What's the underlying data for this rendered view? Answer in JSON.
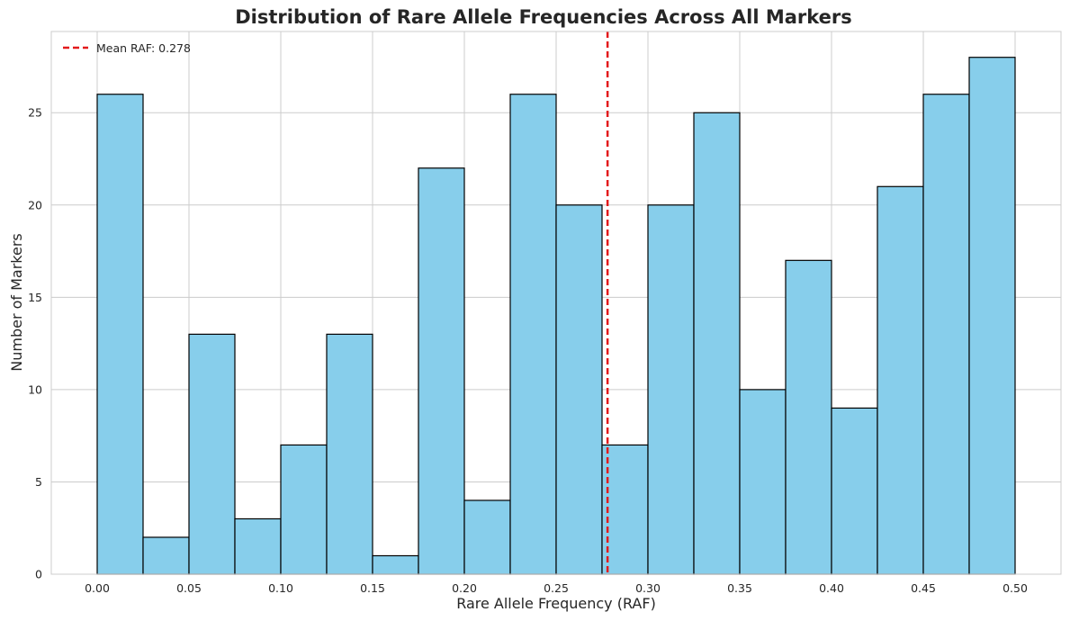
{
  "chart_data": {
    "type": "bar",
    "title": "Distribution of Rare Allele Frequencies Across All Markers",
    "xlabel": "Rare Allele Frequency (RAF)",
    "ylabel": "Number of Markers",
    "bin_edges": [
      0.0,
      0.025,
      0.05,
      0.075,
      0.1,
      0.125,
      0.15,
      0.175,
      0.2,
      0.225,
      0.25,
      0.275,
      0.3,
      0.325,
      0.35,
      0.375,
      0.4,
      0.425,
      0.45,
      0.475,
      0.5
    ],
    "values": [
      26,
      2,
      13,
      3,
      7,
      13,
      1,
      22,
      4,
      26,
      20,
      7,
      20,
      25,
      10,
      17,
      9,
      21,
      26,
      28
    ],
    "xlim": [
      -0.025,
      0.525
    ],
    "ylim": [
      0,
      29.4
    ],
    "xticks": [
      "0.00",
      "0.05",
      "0.10",
      "0.15",
      "0.20",
      "0.25",
      "0.30",
      "0.35",
      "0.40",
      "0.45",
      "0.50"
    ],
    "xtick_values": [
      0.0,
      0.05,
      0.1,
      0.15,
      0.2,
      0.25,
      0.3,
      0.35,
      0.4,
      0.45,
      0.5
    ],
    "yticks": [
      "0",
      "5",
      "10",
      "15",
      "20",
      "25"
    ],
    "ytick_values": [
      0,
      5,
      10,
      15,
      20,
      25
    ],
    "mean_line": {
      "value": 0.278,
      "label": "Mean RAF: 0.278",
      "color": "#e31a1c",
      "style": "dashed"
    },
    "bar_color": "#87ceeb",
    "bar_edge_color": "#000000",
    "grid": true,
    "legend_position": "top-left"
  }
}
